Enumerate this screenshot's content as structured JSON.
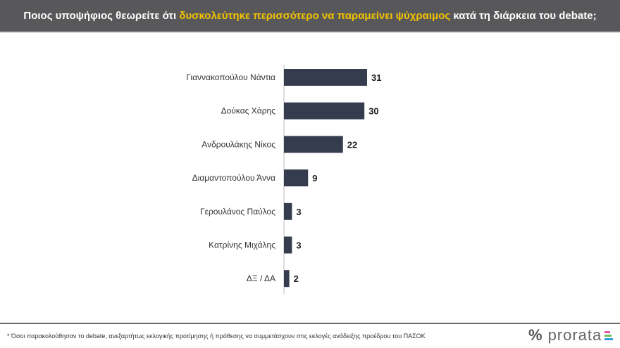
{
  "header": {
    "pre": "Ποιος υποψήφιος θεωρείτε ότι ",
    "highlight": "δυσκολεύτηκε περισσότερο να παραμείνει ψύχραιμος",
    "post": " κατά τη διάρκεια του debate;"
  },
  "colors": {
    "bar": "#353c4e",
    "header_bg": "#58585a",
    "highlight": "#f2c200"
  },
  "chart_data": {
    "type": "bar",
    "orientation": "horizontal",
    "categories": [
      "Γιαννακοπούλου Νάντια",
      "Δούκας Χάρης",
      "Ανδρουλάκης Νίκος",
      "Διαμαντοπούλου Άννα",
      "Γερουλάνος Παύλος",
      "Κατρίνης Μιχάλης",
      "ΔΞ / ΔΑ"
    ],
    "values": [
      31,
      30,
      22,
      9,
      3,
      3,
      2
    ],
    "data_labels": [
      "31",
      "30",
      "22",
      "9",
      "3",
      "3",
      "2"
    ],
    "xlim": [
      0,
      35
    ],
    "grid": false
  },
  "footer": {
    "note": "* Όσοι παρακολούθησαν το debate, ανεξαρτήτως εκλογικής προτίμησης ή πρόθεσης να συμμετάσχουν στις εκλογές ανάδειξης προέδρου του ΠΑΣΟΚ"
  },
  "logo": {
    "symbol": "%",
    "name": "prorata"
  }
}
